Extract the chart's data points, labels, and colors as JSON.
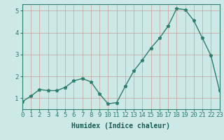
{
  "x": [
    0,
    1,
    2,
    3,
    4,
    5,
    6,
    7,
    8,
    9,
    10,
    11,
    12,
    13,
    14,
    15,
    16,
    17,
    18,
    19,
    20,
    21,
    22,
    23
  ],
  "y": [
    0.85,
    1.1,
    1.4,
    1.35,
    1.35,
    1.5,
    1.8,
    1.9,
    1.75,
    1.2,
    0.75,
    0.8,
    1.55,
    2.25,
    2.75,
    3.3,
    3.75,
    4.3,
    5.1,
    5.05,
    4.55,
    3.75,
    2.95,
    1.35
  ],
  "line_color": "#2e7d6e",
  "marker": "*",
  "marker_size": 3.5,
  "bg_color": "#cce9e5",
  "grid_color": "#c8a0a0",
  "axis_bg": "#cce9e5",
  "xlabel": "Humidex (Indice chaleur)",
  "xlim": [
    0,
    23
  ],
  "ylim": [
    0.5,
    5.3
  ],
  "yticks": [
    1,
    2,
    3,
    4,
    5
  ],
  "xtick_labels": [
    "0",
    "1",
    "2",
    "3",
    "4",
    "5",
    "6",
    "7",
    "8",
    "9",
    "10",
    "11",
    "12",
    "13",
    "14",
    "15",
    "16",
    "17",
    "18",
    "19",
    "20",
    "21",
    "22",
    "23"
  ],
  "xlabel_fontsize": 7,
  "tick_fontsize": 6.5,
  "line_width": 1.0
}
